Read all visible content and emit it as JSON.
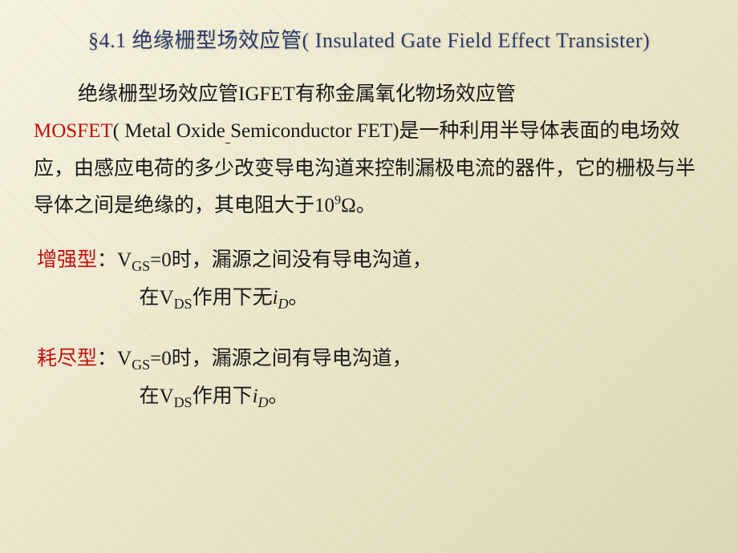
{
  "title": "§4.1  绝缘栅型场效应管( Insulated  Gate Field Effect Transister)",
  "intro": {
    "part1": "绝缘栅型场效应管IGFET有称金属氧化物场效应管",
    "mosfet": "MOSFET",
    "part2_pre": "( Metal  Oxide",
    "part2_space": " ",
    "part2_post": "Semiconductor FET)是一种利用半导体表面的电场效应，由感应电荷的多少改变导电沟道来控制漏极电流的器件，它的栅极与半导体之间是绝缘的，其电阻大于10",
    "exp": "9",
    "ohm_tail": "Ω。"
  },
  "enh": {
    "label": "增强型",
    "colon": "：",
    "l1a": "V",
    "l1a_sub": "GS",
    "l1b": "=0时，漏源之间没有导电沟道，",
    "l2a": "在V",
    "l2a_sub": "DS",
    "l2b": "作用下无",
    "l2_i": "i",
    "l2_i_sub": "D",
    "l2c": "。"
  },
  "dep": {
    "label": "耗尽型",
    "colon": "：",
    "l1a": "V",
    "l1a_sub": "GS",
    "l1b": "=0时，漏源之间有导电沟道，",
    "l2a": "在V",
    "l2a_sub": "DS",
    "l2b": "作用下",
    "l2_i": "i",
    "l2_i_sub": "D",
    "l2c": "。"
  }
}
